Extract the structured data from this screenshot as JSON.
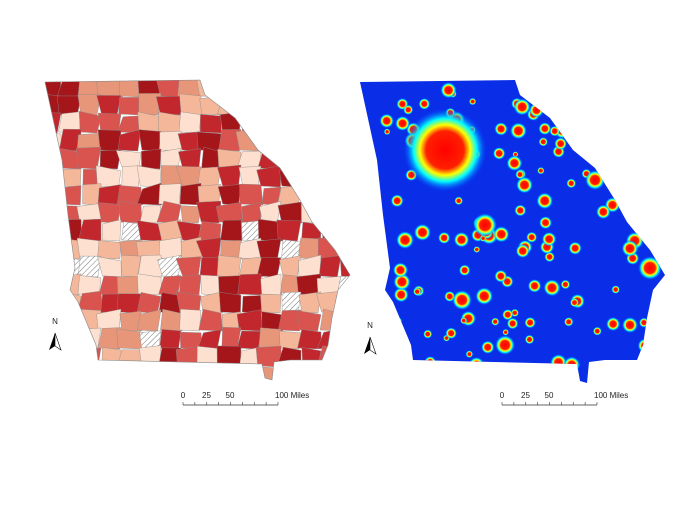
{
  "maps": [
    {
      "north_label": "N",
      "scale_labels": [
        "0",
        "25",
        "50",
        "100 Miles"
      ]
    },
    {
      "north_label": "N",
      "scale_labels": [
        "0",
        "25",
        "50",
        "100 Miles"
      ]
    }
  ]
}
